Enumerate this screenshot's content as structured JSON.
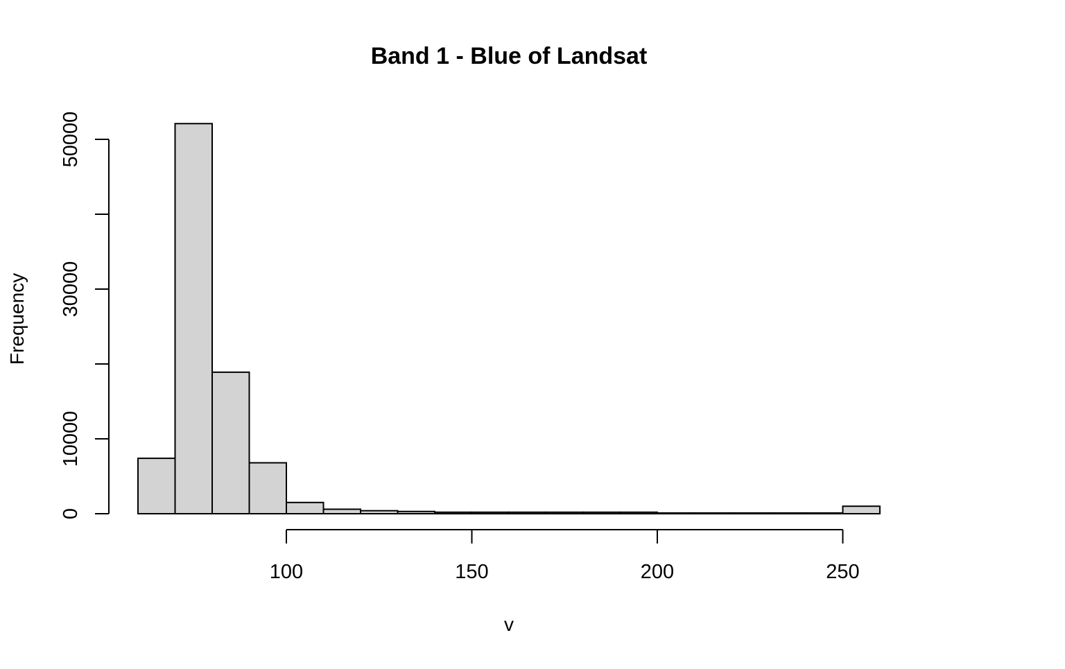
{
  "chart_data": {
    "type": "bar",
    "subtype": "histogram",
    "title": "Band 1 - Blue of Landsat",
    "xlabel": "v",
    "ylabel": "Frequency",
    "bin_edges": [
      60,
      70,
      80,
      90,
      100,
      110,
      120,
      130,
      140,
      150,
      160,
      170,
      180,
      190,
      200,
      210,
      220,
      230,
      240,
      250,
      260
    ],
    "values": [
      7400,
      52100,
      18900,
      6800,
      1500,
      600,
      400,
      300,
      200,
      200,
      200,
      200,
      200,
      200,
      100,
      100,
      100,
      100,
      100,
      1000
    ],
    "x_ticks": [
      100,
      150,
      200,
      250
    ],
    "y_ticks": [
      0,
      10000,
      30000,
      50000
    ],
    "y_tick_marks": [
      0,
      10000,
      20000,
      30000,
      40000,
      50000
    ],
    "ylim": [
      0,
      52100
    ],
    "bar_fill": "#d3d3d3",
    "bar_stroke": "#000000",
    "grid": false,
    "legend": "none"
  }
}
